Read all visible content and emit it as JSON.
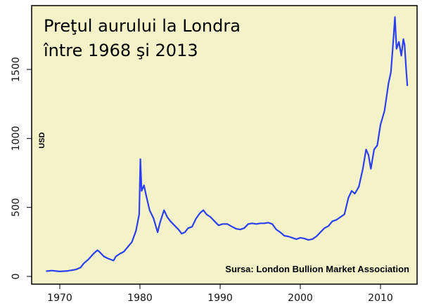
{
  "chart_data": {
    "type": "line",
    "title_lines": [
      "Preţul aurului la Londra",
      "între 1968 şi 2013"
    ],
    "xlabel": "",
    "ylabel": "USD",
    "source": "Sursa: London Bullion Market Association",
    "xlim": [
      1968,
      2013.5
    ],
    "ylim": [
      0,
      1900
    ],
    "x_ticks": [
      1970,
      1980,
      1990,
      2000,
      2010
    ],
    "y_ticks": [
      0,
      500,
      1000,
      1500
    ],
    "grid": false,
    "legend": "none",
    "colors": {
      "line": "#2c3ff5",
      "plot_background": "#f4f2c8",
      "frame": "#000000"
    },
    "series": [
      {
        "x": [
          1968.3,
          1969,
          1970,
          1971,
          1972,
          1972.6,
          1973,
          1973.6,
          1974.2,
          1974.7,
          1975,
          1975.5,
          1976,
          1976.7,
          1977,
          1977.5,
          1978,
          1978.5,
          1979,
          1979.5,
          1979.9,
          1980.05,
          1980.2,
          1980.5,
          1980.8,
          1981.2,
          1981.7,
          1982.2,
          1982.5,
          1983,
          1983.4,
          1983.8,
          1984.3,
          1984.8,
          1985.2,
          1985.6,
          1986,
          1986.5,
          1987,
          1987.5,
          1987.9,
          1988.3,
          1988.8,
          1989.3,
          1989.8,
          1990.3,
          1990.9,
          1991.5,
          1992,
          1992.5,
          1993,
          1993.5,
          1994,
          1994.5,
          1995,
          1995.5,
          1996,
          1996.5,
          1997,
          1997.5,
          1998,
          1998.5,
          1999,
          1999.5,
          2000,
          2000.5,
          2001,
          2001.5,
          2002,
          2002.5,
          2003,
          2003.5,
          2004,
          2004.5,
          2005,
          2005.5,
          2006,
          2006.4,
          2006.8,
          2007.3,
          2007.8,
          2008.2,
          2008.5,
          2008.8,
          2009.2,
          2009.6,
          2010,
          2010.5,
          2011,
          2011.3,
          2011.65,
          2011.8,
          2012,
          2012.3,
          2012.6,
          2012.85,
          2013,
          2013.2,
          2013.35
        ],
        "y": [
          38,
          42,
          36,
          40,
          50,
          65,
          95,
          125,
          165,
          190,
          175,
          145,
          130,
          115,
          145,
          165,
          180,
          215,
          250,
          330,
          450,
          850,
          620,
          660,
          580,
          480,
          420,
          320,
          390,
          480,
          430,
          400,
          370,
          340,
          310,
          320,
          350,
          360,
          420,
          460,
          480,
          450,
          430,
          400,
          370,
          380,
          380,
          360,
          345,
          340,
          350,
          380,
          385,
          380,
          385,
          385,
          390,
          380,
          340,
          320,
          295,
          290,
          280,
          270,
          280,
          275,
          265,
          270,
          290,
          320,
          350,
          365,
          400,
          410,
          430,
          450,
          570,
          620,
          600,
          650,
          780,
          920,
          880,
          780,
          920,
          950,
          1100,
          1200,
          1400,
          1480,
          1750,
          1880,
          1650,
          1700,
          1600,
          1720,
          1680,
          1500,
          1380
        ]
      }
    ]
  }
}
